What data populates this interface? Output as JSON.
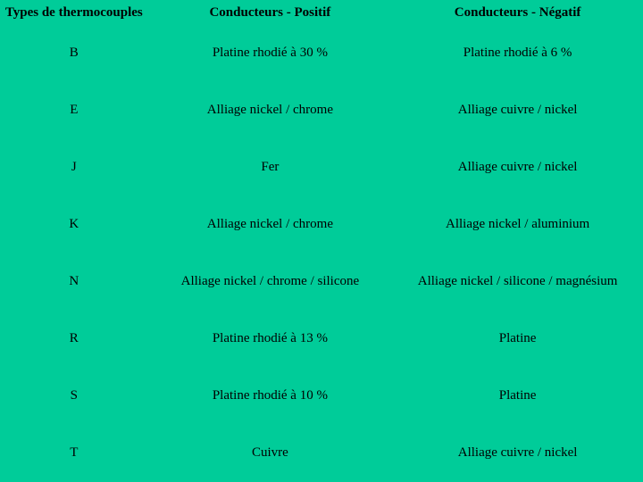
{
  "columns": [
    "Types de thermocouples",
    "Conducteurs - Positif",
    "Conducteurs - Négatif"
  ],
  "rows": [
    {
      "type": "B",
      "positive": "Platine rhodié à 30 %",
      "negative": "Platine rhodié à 6 %"
    },
    {
      "type": "E",
      "positive": "Alliage nickel / chrome",
      "negative": "Alliage cuivre / nickel"
    },
    {
      "type": "J",
      "positive": "Fer",
      "negative": "Alliage cuivre / nickel"
    },
    {
      "type": "K",
      "positive": "Alliage nickel / chrome",
      "negative": "Alliage nickel / aluminium"
    },
    {
      "type": "N",
      "positive": "Alliage nickel / chrome / silicone",
      "negative": "Alliage nickel / silicone / magnésium"
    },
    {
      "type": "R",
      "positive": "Platine rhodié à 13 %",
      "negative": "Platine"
    },
    {
      "type": "S",
      "positive": "Platine rhodié à 10 %",
      "negative": "Platine"
    },
    {
      "type": "T",
      "positive": "Cuivre",
      "negative": "Alliage cuivre / nickel"
    }
  ],
  "style": {
    "background_color": "#00cc99",
    "text_color": "#000000",
    "font_family": "Times New Roman",
    "header_fontsize": 15,
    "cell_fontsize": 15,
    "column_widths_pct": [
      23,
      38,
      39
    ]
  }
}
